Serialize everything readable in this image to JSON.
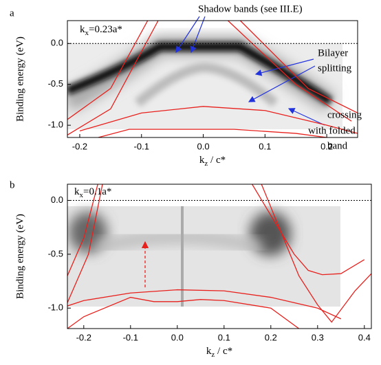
{
  "chart_data": [
    {
      "type": "line",
      "panel_label": "a",
      "kx_label": [
        "k",
        "x",
        "=0.23a*"
      ],
      "ylabel": "Binding energy (eV)",
      "xlabel": [
        "k",
        "z",
        " / c*"
      ],
      "xlim": [
        -0.22,
        0.25
      ],
      "ylim": [
        -1.15,
        0.28
      ],
      "xticks": [
        -0.2,
        -0.1,
        {
          "value": 0,
          "label": "0.0"
        },
        0.1,
        0.2
      ],
      "yticks": [
        {
          "value": 0,
          "label": "0.0"
        },
        -0.5,
        {
          "value": -1,
          "label": "-1.0"
        }
      ],
      "annotations": [
        "Shadow bands (see III.E)",
        "Bilayer",
        "splitting",
        "crossing",
        "with folded",
        "band"
      ],
      "series": [
        {
          "color": "#e8201c",
          "x": [
            -0.22,
            -0.15,
            -0.09
          ],
          "values": [
            -0.93,
            -0.55,
            0.28
          ]
        },
        {
          "color": "#e8201c",
          "x": [
            -0.22,
            -0.15,
            -0.073
          ],
          "values": [
            -1.12,
            -0.8,
            0.28
          ]
        },
        {
          "color": "#e8201c",
          "x": [
            0.04,
            0.15,
            0.24
          ],
          "values": [
            0.28,
            -0.5,
            -0.95
          ]
        },
        {
          "color": "#e8201c",
          "x": [
            0.06,
            0.17,
            0.25
          ],
          "values": [
            0.28,
            -0.55,
            -0.85
          ]
        },
        {
          "color": "#e8201c",
          "x": [
            -0.2,
            -0.1,
            0,
            0.1,
            0.2,
            0.25
          ],
          "values": [
            -1.07,
            -0.85,
            -0.77,
            -0.82,
            -1.0,
            -1.1
          ]
        },
        {
          "color": "#e8201c",
          "x": [
            -0.17,
            -0.12,
            0.05,
            0.15,
            0.2
          ],
          "values": [
            -1.15,
            -1.05,
            -1.05,
            -1.1,
            -1.15
          ]
        }
      ]
    },
    {
      "type": "line",
      "panel_label": "b",
      "kx_label": [
        "k",
        "x",
        "=0.1a*"
      ],
      "ylabel": "Binding energy (eV)",
      "xlabel": [
        "k",
        "z",
        " / c*"
      ],
      "xlim": [
        -0.235,
        0.415
      ],
      "ylim": [
        -1.19,
        0.15
      ],
      "xticks": [
        -0.2,
        -0.1,
        {
          "value": 0,
          "label": "0.0"
        },
        0.1,
        0.2,
        0.3,
        0.4
      ],
      "yticks": [
        {
          "value": 0,
          "label": "0.0"
        },
        -0.5,
        {
          "value": -1,
          "label": "-1.0"
        }
      ],
      "annotations": [],
      "series": [
        {
          "color": "#e8201c",
          "x": [
            -0.235,
            -0.2,
            -0.17
          ],
          "values": [
            -0.7,
            -0.35,
            0.15
          ]
        },
        {
          "color": "#e8201c",
          "x": [
            -0.235,
            -0.19,
            -0.16
          ],
          "values": [
            -0.95,
            -0.5,
            0.15
          ]
        },
        {
          "color": "#e8201c",
          "x": [
            0.16,
            0.25,
            0.28,
            0.31,
            0.35,
            0.4
          ],
          "values": [
            0.15,
            -0.5,
            -0.65,
            -0.69,
            -0.68,
            -0.55
          ]
        },
        {
          "color": "#e8201c",
          "x": [
            0.18,
            0.26,
            0.3,
            0.33,
            0.38,
            0.415
          ],
          "values": [
            0.15,
            -0.7,
            -0.97,
            -1.13,
            -0.84,
            -0.68
          ]
        },
        {
          "color": "#e8201c",
          "x": [
            -0.235,
            -0.2,
            -0.1,
            0,
            0.1,
            0.2,
            0.3,
            0.35
          ],
          "values": [
            -0.98,
            -0.93,
            -0.86,
            -0.83,
            -0.84,
            -0.9,
            -1.0,
            -1.1
          ]
        },
        {
          "color": "#e8201c",
          "x": [
            -0.235,
            -0.2,
            -0.1,
            -0.05,
            0,
            0.05,
            0.1,
            0.2,
            0.26
          ],
          "values": [
            -1.19,
            -1.08,
            -0.9,
            -0.94,
            -0.94,
            -0.92,
            -0.93,
            -1.0,
            -1.19
          ]
        }
      ]
    }
  ]
}
